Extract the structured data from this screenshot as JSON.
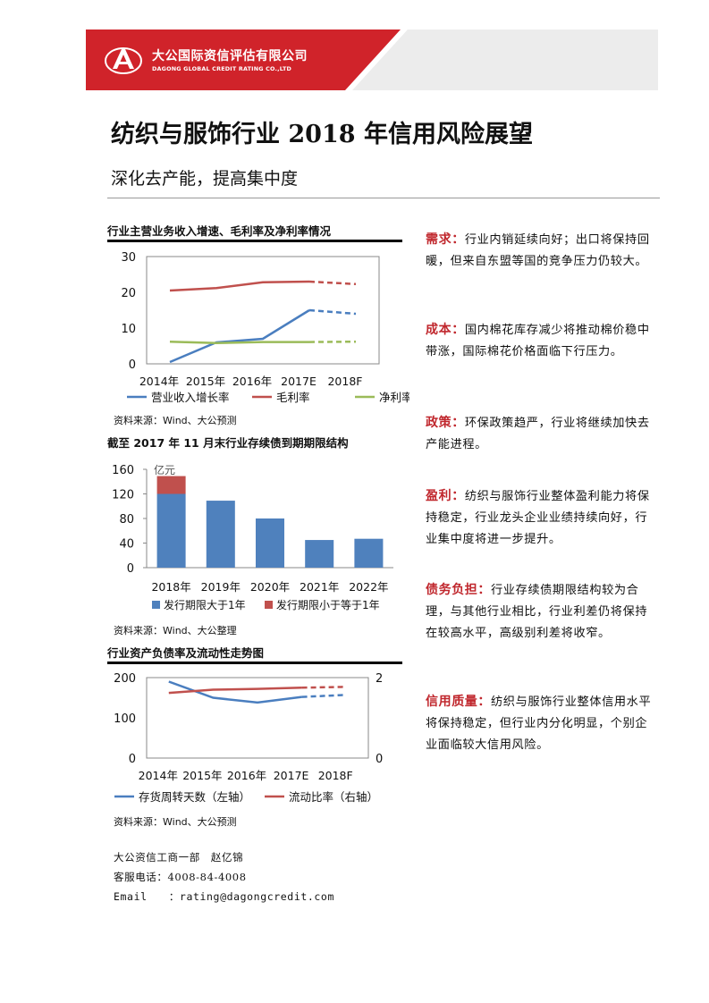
{
  "header": {
    "company_cn": "大公国际资信评估有限公司",
    "company_en": "DAGONG GLOBAL CREDIT RATING CO.,LTD",
    "brand_color": "#d0232a"
  },
  "title": "纺织与服饰行业 2018 年信用风险展望",
  "subtitle": "深化去产能，提高集中度",
  "chart1": {
    "title": "行业主营业务收入增速、毛利率及净利率情况",
    "source": "资料来源：Wind、大公预测"
  },
  "chart2": {
    "title": "截至 2017 年 11 月末行业存续债到期期限结构",
    "unit": "亿元",
    "source": "资料来源：Wind、大公整理"
  },
  "chart3": {
    "title": "行业资产负债率及流动性走势图",
    "source": "资料来源：Wind、大公预测"
  },
  "chart_data": [
    {
      "type": "line",
      "title": "行业主营业务收入增速、毛利率及净利率情况",
      "categories": [
        "2014年",
        "2015年",
        "2016年",
        "2017E",
        "2018F"
      ],
      "ylim": [
        0,
        30
      ],
      "yticks": [
        "0",
        "10",
        "20",
        "30"
      ],
      "legend": "bottom",
      "projected_from": "2017E",
      "series": [
        {
          "name": "营业收入增长率",
          "color": "#4a7ebf",
          "values": [
            0.5,
            6,
            7,
            15,
            14
          ]
        },
        {
          "name": "毛利率",
          "color": "#c0504d",
          "values": [
            20.5,
            21.2,
            22.8,
            23,
            22.3
          ]
        },
        {
          "name": "净利率",
          "color": "#9bbb59",
          "values": [
            6.2,
            5.8,
            6.1,
            6.1,
            6.2
          ]
        }
      ]
    },
    {
      "type": "bar",
      "stacked": true,
      "title": "截至 2017 年 11 月末行业存续债到期期限结构",
      "categories": [
        "2018年",
        "2019年",
        "2020年",
        "2021年",
        "2022年"
      ],
      "ylim": [
        0,
        160
      ],
      "yticks": [
        "0",
        "40",
        "80",
        "120",
        "160"
      ],
      "unit": "亿元",
      "legend": "bottom",
      "series": [
        {
          "name": "发行期限大于1年",
          "color": "#4f81bd",
          "values": [
            120,
            109,
            80,
            45,
            47
          ]
        },
        {
          "name": "发行期限小于等于1年",
          "color": "#c0504d",
          "values": [
            29,
            0,
            0,
            0,
            0
          ]
        }
      ]
    },
    {
      "type": "line",
      "title": "行业资产负债率及流动性走势图",
      "categories": [
        "2014年",
        "2015年",
        "2016年",
        "2017E",
        "2018F"
      ],
      "ylim": [
        0,
        200
      ],
      "yticks": [
        "0",
        "100",
        "200"
      ],
      "y2lim": [
        0,
        2
      ],
      "y2ticks": [
        "0",
        "2"
      ],
      "legend": "bottom",
      "projected_from": "2017E",
      "series": [
        {
          "name": "存货周转天数（左轴）",
          "color": "#4a7ebf",
          "axis": "left",
          "values": [
            190,
            150,
            138,
            152,
            157
          ]
        },
        {
          "name": "流动比率（右轴）",
          "color": "#c0504d",
          "axis": "right",
          "values": [
            1.62,
            1.7,
            1.72,
            1.75,
            1.77
          ]
        }
      ]
    }
  ],
  "sections": [
    {
      "label": "需求：",
      "text": "行业内销延续向好；出口将保持回暖，但来自东盟等国的竞争压力仍较大。"
    },
    {
      "label": "成本：",
      "text": "国内棉花库存减少将推动棉价稳中带涨，国际棉花价格面临下行压力。"
    },
    {
      "label": "政策：",
      "text": "环保政策趋严，行业将继续加快去产能进程。"
    },
    {
      "label": "盈利：",
      "text": "纺织与服饰行业整体盈利能力将保持稳定，行业龙头企业业绩持续向好，行业集中度将进一步提升。"
    },
    {
      "label": "债务负担：",
      "text": "行业存续债期限结构较为合理，与其他行业相比，行业利差仍将保持在较高水平，高级别利差将收窄。"
    },
    {
      "label": "信用质量：",
      "text": "纺织与服饰行业整体信用水平将保持稳定，但行业内分化明显，个别企业面临较大信用风险。"
    }
  ],
  "contact": {
    "dept": "大公资信工商一部　赵亿锦",
    "phone": "客服电话：4008-84-4008",
    "email_label": "Email　　：",
    "email": "rating@dagongcredit.com"
  }
}
